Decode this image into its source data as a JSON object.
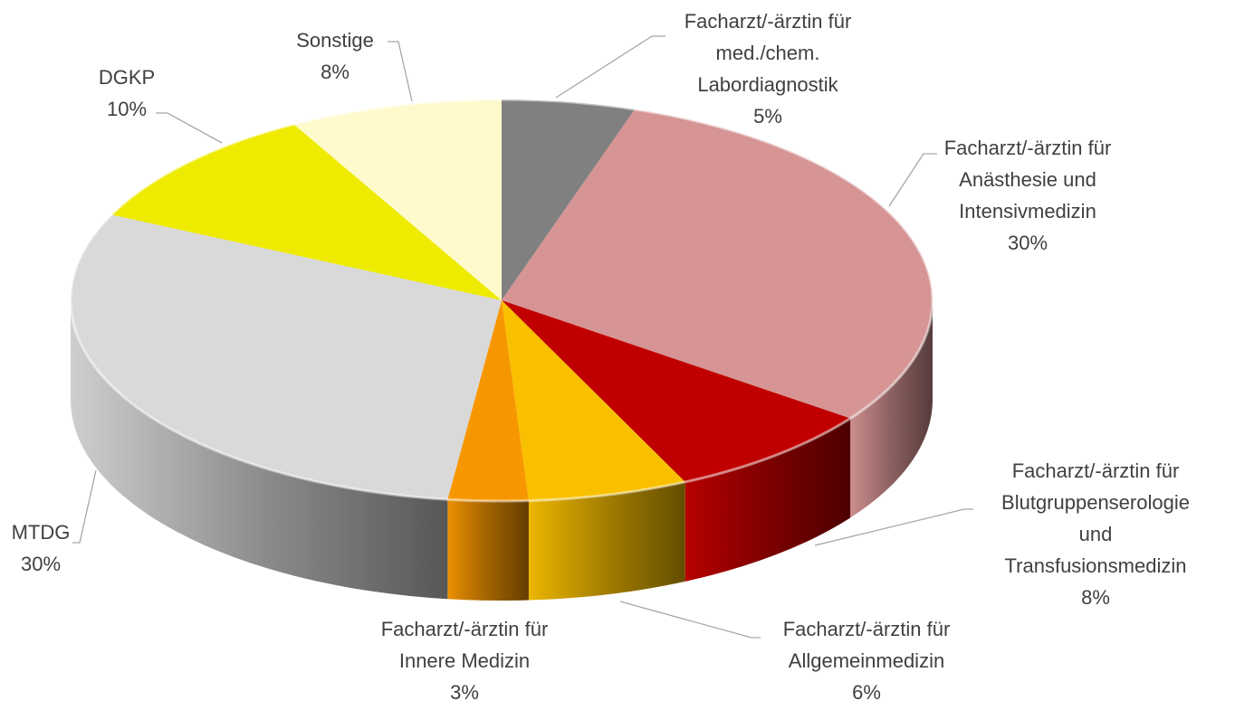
{
  "chart_data": {
    "type": "pie",
    "categories": [
      "Facharzt/-ärztin für\nmed./chem.\nLabordiagnostik",
      "Facharzt/-ärztin für\nAnästhesie und\nIntensivmedizin",
      "Facharzt/-ärztin für\nBlutgruppenserologie\nund\nTransfusionsmedizin",
      "Facharzt/-ärztin für\nAllgemeinmedizin",
      "Facharzt/-ärztin für\nInnere Medizin",
      "MTDG",
      "DGKP",
      "Sonstige"
    ],
    "values": [
      5,
      30,
      8,
      6,
      3,
      30,
      10,
      8
    ],
    "value_labels": [
      "5%",
      "30%",
      "8%",
      "6%",
      "3%",
      "30%",
      "10%",
      "8%"
    ],
    "colors": [
      "#808080",
      "#d69494",
      "#c00000",
      "#f9c000",
      "#f79700",
      "#d9d9d9",
      "#eeea00",
      "#fefacc"
    ]
  }
}
